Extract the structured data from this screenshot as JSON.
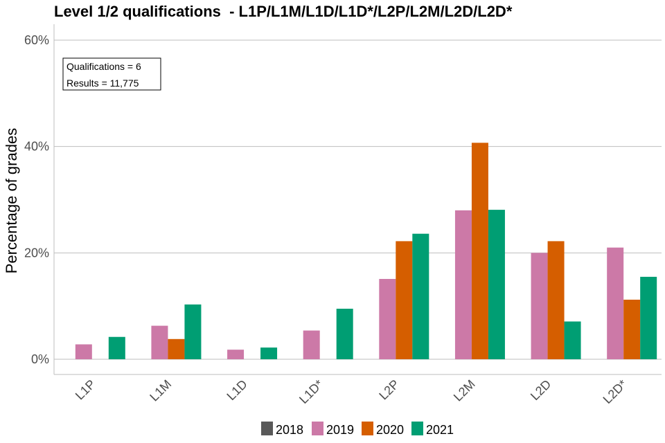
{
  "chart_data": {
    "type": "bar",
    "title": "Level 1/2 qualifications  - L1P/L1M/L1D/L1D*/L2P/L2M/L2D/L2D*",
    "xlabel": "",
    "ylabel": "Percentage of grades",
    "ylim": [
      0,
      60
    ],
    "yticks": [
      0,
      20,
      40,
      60
    ],
    "ytick_labels": [
      "0%",
      "20%",
      "40%",
      "60%"
    ],
    "grid": "horizontal",
    "legend_position": "bottom",
    "categories": [
      "L1P",
      "L1M",
      "L1D",
      "L1D*",
      "L2P",
      "L2M",
      "L2D",
      "L2D*"
    ],
    "series": [
      {
        "name": "2018",
        "color": "#595959",
        "values": [
          null,
          null,
          null,
          null,
          null,
          null,
          null,
          null
        ]
      },
      {
        "name": "2019",
        "color": "#cc79a7",
        "values": [
          2.8,
          6.3,
          1.8,
          5.4,
          15.1,
          28.0,
          20.0,
          21.0
        ]
      },
      {
        "name": "2020",
        "color": "#d55e00",
        "values": [
          null,
          3.8,
          null,
          null,
          22.2,
          40.7,
          22.2,
          11.2
        ]
      },
      {
        "name": "2021",
        "color": "#009e73",
        "values": [
          4.2,
          10.3,
          2.2,
          9.5,
          23.6,
          28.1,
          7.1,
          15.5
        ]
      }
    ],
    "annotation": [
      "Qualifications = 6",
      "Results = 11,775"
    ]
  }
}
